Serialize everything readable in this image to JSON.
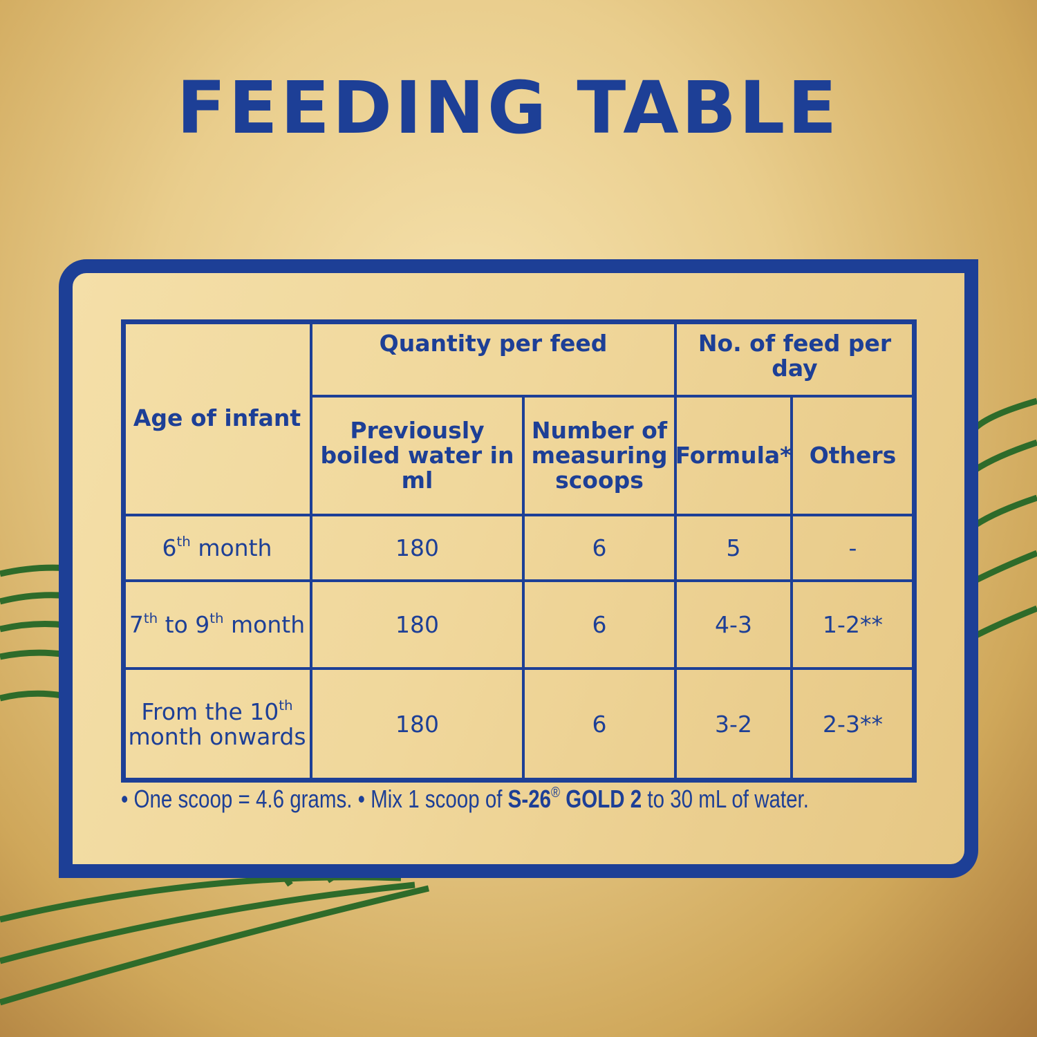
{
  "title": "FEEDING TABLE",
  "table": {
    "header": {
      "age": "Age of infant",
      "quantity": "Quantity per feed",
      "feeds": "No. of feed per day",
      "water": "Previously boiled water in ml",
      "scoops": "Number of measuring scoops",
      "formula": "Formula*",
      "others": "Others"
    },
    "rows": [
      {
        "age": [
          {
            "t": "6"
          },
          {
            "sup": "th"
          },
          {
            "t": " month"
          }
        ],
        "water": 180,
        "scoops": 6,
        "formula": 5,
        "others": "-"
      },
      {
        "age": [
          {
            "t": "7"
          },
          {
            "sup": "th"
          },
          {
            "t": " to 9"
          },
          {
            "sup": "th"
          },
          {
            "t": " month"
          }
        ],
        "water": 180,
        "scoops": 6,
        "formula": "4-3",
        "others": "1-2**"
      },
      {
        "age": [
          {
            "t": "From the 10"
          },
          {
            "sup": "th"
          },
          {
            "t": " month onwards"
          }
        ],
        "water": 180,
        "scoops": 6,
        "formula": "3-2",
        "others": "2-3**"
      }
    ]
  },
  "footnote": [
    {
      "t": "• One scoop = 4.6 grams. • Mix 1 scoop of "
    },
    {
      "t": "S-26",
      "bold": true
    },
    {
      "sup": "®"
    },
    {
      "t": " GOLD 2",
      "bold": true
    },
    {
      "t": " to 30 mL of water."
    }
  ]
}
